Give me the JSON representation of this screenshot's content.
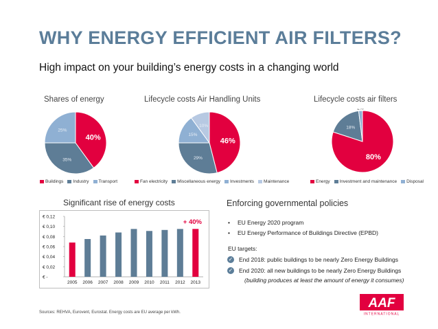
{
  "header": {
    "title": "WHY ENERGY EFFICIENT AIR FILTERS?",
    "subtitle": "High impact on your building’s energy costs in a changing world"
  },
  "colors": {
    "red": "#e2003f",
    "slate": "#5e7d96",
    "lightblue": "#8fb0d3",
    "title": "#5b7d99"
  },
  "chart_data": [
    {
      "type": "pie",
      "title": "Shares of energy",
      "slices": [
        {
          "name": "Buildings",
          "value": 40,
          "label": "40%",
          "color": "#e2003f"
        },
        {
          "name": "Industry",
          "value": 35,
          "label": "35%",
          "color": "#5e7d96"
        },
        {
          "name": "Transport",
          "value": 25,
          "label": "25%",
          "color": "#8fb0d3"
        }
      ]
    },
    {
      "type": "pie",
      "title": "Lifecycle costs Air Handling Units",
      "slices": [
        {
          "name": "Fan electricity",
          "value": 46,
          "label": "46%",
          "color": "#e2003f"
        },
        {
          "name": "Miscellaneous energy",
          "value": 29,
          "label": "29%",
          "color": "#5e7d96"
        },
        {
          "name": "Investments",
          "value": 15,
          "label": "15%",
          "color": "#8fb0d3"
        },
        {
          "name": "Maintenance",
          "value": 10,
          "label": "10%",
          "color": "#b7c9e2"
        }
      ]
    },
    {
      "type": "pie",
      "title": "Lifecycle costs air filters",
      "slices": [
        {
          "name": "Energy",
          "value": 80,
          "label": "80%",
          "color": "#e2003f"
        },
        {
          "name": "Investment and maintenance",
          "value": 18,
          "label": "18%",
          "color": "#5e7d96"
        },
        {
          "name": "Disposal",
          "value": 2,
          "label": "2%",
          "color": "#8fb0d3"
        }
      ]
    },
    {
      "type": "bar",
      "title": "Significant rise of energy costs",
      "categories": [
        "2005",
        "2006",
        "2007",
        "2008",
        "2009",
        "2010",
        "2011",
        "2012",
        "2013"
      ],
      "values": [
        0.068,
        0.075,
        0.082,
        0.088,
        0.095,
        0.091,
        0.093,
        0.095,
        0.095
      ],
      "ylim": [
        0,
        0.12
      ],
      "yticks": [
        "€ -",
        "€ 0,02",
        "€ 0,04",
        "€ 0,06",
        "€ 0,08",
        "€ 0,10",
        "€ 0,12"
      ],
      "annotation": "+ 40%",
      "highlight_index": [
        0,
        8
      ]
    }
  ],
  "policies": {
    "title": "Enforcing governmental policies",
    "bullets": [
      "EU Energy 2020 program",
      "EU Energy Performance of Buildings Directive (EPBD)"
    ],
    "eu_label": "EU targets:",
    "targets": [
      "End 2018: public buildings to be nearly Zero Energy Buildings",
      "End 2020: all new buildings to be nearly Zero Energy Buildings"
    ],
    "note": "(building produces at least the amount of energy it consumes)"
  },
  "sources": "Sources: REHVA, Eurovent, Eurostat. Energy costs are EU average per kWh.",
  "logo": {
    "text": "AAF",
    "sub": "INTERNATIONAL"
  }
}
